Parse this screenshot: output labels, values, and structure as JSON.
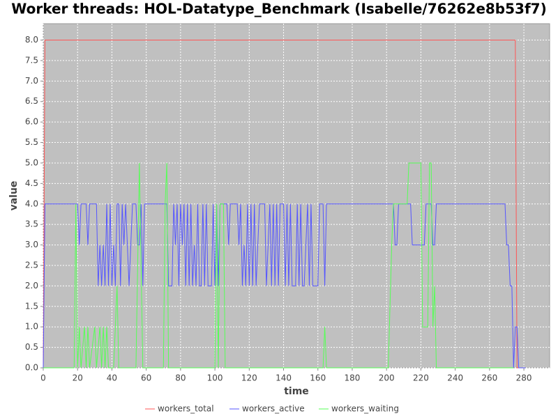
{
  "chart_data": {
    "type": "line",
    "title": "Worker threads: HOL-Datatype_Benchmark (Isabelle/76262e8b53f7)",
    "x_label": "time",
    "y_label": "value",
    "xlim": [
      0,
      295
    ],
    "ylim": [
      0,
      8.4
    ],
    "xticks": [
      0,
      20,
      40,
      60,
      80,
      100,
      120,
      140,
      160,
      180,
      200,
      220,
      240,
      260,
      280
    ],
    "yticks": [
      {
        "value": 0,
        "label": "0.0"
      },
      0.5,
      {
        "value": 1,
        "label": "1.0"
      },
      1.5,
      {
        "value": 2,
        "label": "2.0"
      },
      2.5,
      {
        "value": 3,
        "label": "3.0"
      },
      3.5,
      {
        "value": 4,
        "label": "4.0"
      },
      4.5,
      {
        "value": 5,
        "label": "5.0"
      },
      5.5,
      {
        "value": 6,
        "label": "6.0"
      },
      6.5,
      {
        "value": 7,
        "label": "7.0"
      },
      7.5,
      {
        "value": 8,
        "label": "8.0"
      }
    ],
    "grid": true,
    "legend": "bottom",
    "series": [
      {
        "name": "workers_total",
        "color": "#ff5555",
        "x": [
          0,
          1,
          275,
          276,
          281
        ],
        "values": [
          0,
          8,
          8,
          0,
          0
        ]
      },
      {
        "name": "workers_active",
        "color": "#5555ff",
        "x": [
          0,
          1,
          20,
          21,
          22,
          25,
          26,
          27,
          31,
          32,
          33,
          34,
          35,
          36,
          37,
          38,
          39,
          40,
          41,
          42,
          43,
          44,
          45,
          46,
          47,
          48,
          49,
          50,
          51,
          52,
          54,
          55,
          56,
          57,
          58,
          59,
          60,
          61,
          70,
          72,
          73,
          75,
          76,
          77,
          78,
          79,
          80,
          81,
          82,
          83,
          84,
          85,
          86,
          87,
          88,
          89,
          90,
          91,
          92,
          93,
          94,
          95,
          96,
          98,
          99,
          100,
          101,
          102,
          103,
          107,
          108,
          109,
          113,
          114,
          115,
          116,
          117,
          118,
          119,
          120,
          121,
          122,
          123,
          124,
          125,
          126,
          129,
          130,
          131,
          132,
          133,
          134,
          135,
          136,
          137,
          138,
          140,
          141,
          142,
          143,
          144,
          145,
          147,
          148,
          149,
          150,
          151,
          152,
          153,
          154,
          155,
          156,
          157,
          160,
          161,
          163,
          164,
          165,
          204,
          205,
          206,
          207,
          214,
          215,
          222,
          223,
          226,
          227,
          228,
          229,
          269,
          270,
          271,
          272,
          273,
          274,
          275,
          276,
          277,
          281
        ],
        "values": [
          0,
          4,
          4,
          3,
          4,
          4,
          3,
          4,
          4,
          2,
          3,
          2,
          3,
          2,
          4,
          2,
          4,
          2,
          3,
          2,
          4,
          4,
          2,
          4,
          3,
          4,
          3,
          2,
          3,
          4,
          4,
          3,
          3,
          4,
          2,
          4,
          4,
          4,
          4,
          4,
          2,
          2,
          4,
          3,
          4,
          2,
          4,
          3,
          4,
          2,
          4,
          2,
          4,
          2,
          3,
          2,
          4,
          2,
          2,
          4,
          2,
          4,
          2,
          2,
          4,
          2,
          4,
          2,
          4,
          4,
          3,
          4,
          4,
          3,
          4,
          2,
          3,
          2,
          4,
          2,
          4,
          2,
          4,
          2,
          3,
          4,
          4,
          2,
          3,
          4,
          2,
          4,
          2,
          4,
          2,
          4,
          4,
          2,
          4,
          2,
          4,
          2,
          2,
          4,
          2,
          4,
          2,
          2,
          3,
          4,
          2,
          4,
          2,
          2,
          4,
          4,
          2,
          4,
          4,
          3,
          3,
          4,
          4,
          3,
          3,
          4,
          4,
          3,
          3,
          4,
          4,
          3,
          3,
          2,
          2,
          0,
          1,
          1,
          0,
          0
        ]
      },
      {
        "name": "workers_waiting",
        "color": "#55ff55",
        "x": [
          0,
          18,
          19,
          20,
          21,
          22,
          24,
          25,
          26,
          27,
          30,
          31,
          33,
          34,
          35,
          36,
          37,
          38,
          41,
          42,
          43,
          44,
          54,
          56,
          58,
          70,
          71,
          72,
          73,
          100,
          101,
          102,
          103,
          105,
          106,
          163,
          164,
          165,
          201,
          203,
          204,
          212,
          213,
          220,
          221,
          224,
          225,
          226,
          227,
          228,
          229,
          274
        ],
        "values": [
          0,
          0,
          4,
          0,
          1,
          0,
          1,
          0,
          1,
          0,
          1,
          0,
          1,
          0,
          1,
          0,
          1,
          0,
          0,
          1,
          2,
          0,
          0,
          5,
          0,
          0,
          4,
          5,
          0,
          0,
          4,
          0,
          4,
          4,
          0,
          0,
          1,
          0,
          0,
          3,
          4,
          4,
          5,
          5,
          1,
          1,
          5,
          5,
          1,
          2,
          0,
          0
        ]
      }
    ]
  }
}
